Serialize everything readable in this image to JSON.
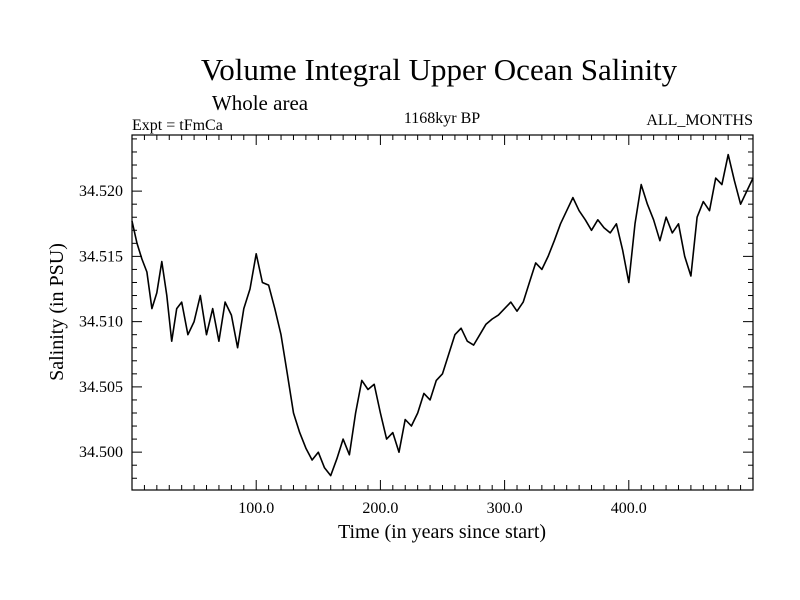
{
  "chart_data": {
    "type": "line",
    "title": "Volume Integral Upper Ocean Salinity",
    "subtitle": "Whole area",
    "annotations": {
      "left": "Expt = tFmCa",
      "center": "1168kyr BP",
      "right": "ALL_MONTHS"
    },
    "xlabel": "Time (in years since start)",
    "ylabel": "Salinity (in PSU)",
    "xlim": [
      0,
      500
    ],
    "ylim": [
      34.4971,
      34.5243
    ],
    "x_ticks": [
      {
        "value": 100,
        "label": "100.0"
      },
      {
        "value": 200,
        "label": "200.0"
      },
      {
        "value": 300,
        "label": "300.0"
      },
      {
        "value": 400,
        "label": "400.0"
      }
    ],
    "y_ticks": [
      {
        "value": 34.5,
        "label": "34.500"
      },
      {
        "value": 34.505,
        "label": "34.505"
      },
      {
        "value": 34.51,
        "label": "34.510"
      },
      {
        "value": 34.515,
        "label": "34.515"
      },
      {
        "value": 34.52,
        "label": "34.520"
      }
    ],
    "grid": false,
    "series": [
      {
        "name": "salinity",
        "x": [
          0,
          4,
          8,
          12,
          16,
          20,
          24,
          28,
          32,
          36,
          40,
          45,
          50,
          55,
          60,
          65,
          70,
          75,
          80,
          85,
          90,
          95,
          100,
          105,
          110,
          115,
          120,
          125,
          130,
          135,
          140,
          145,
          150,
          155,
          160,
          165,
          170,
          175,
          180,
          185,
          190,
          195,
          200,
          205,
          210,
          215,
          220,
          225,
          230,
          235,
          240,
          245,
          250,
          255,
          260,
          265,
          270,
          275,
          280,
          285,
          290,
          295,
          300,
          305,
          310,
          315,
          320,
          325,
          330,
          335,
          340,
          345,
          350,
          355,
          360,
          365,
          370,
          375,
          380,
          385,
          390,
          395,
          400,
          405,
          410,
          415,
          420,
          425,
          430,
          435,
          440,
          445,
          450,
          455,
          460,
          465,
          470,
          475,
          480,
          485,
          490,
          495,
          500
        ],
        "values": [
          34.5177,
          34.516,
          34.5148,
          34.5138,
          34.511,
          34.5122,
          34.5146,
          34.512,
          34.5085,
          34.511,
          34.5115,
          34.509,
          34.51,
          34.512,
          34.509,
          34.511,
          34.5085,
          34.5115,
          34.5105,
          34.508,
          34.511,
          34.5125,
          34.5152,
          34.513,
          34.5128,
          34.511,
          34.509,
          34.506,
          34.503,
          34.5015,
          34.5003,
          34.4994,
          34.5,
          34.4988,
          34.4982,
          34.4995,
          34.501,
          34.4998,
          34.503,
          34.5055,
          34.5048,
          34.5052,
          34.503,
          34.501,
          34.5015,
          34.5,
          34.5025,
          34.502,
          34.503,
          34.5045,
          34.504,
          34.5055,
          34.506,
          34.5075,
          34.509,
          34.5095,
          34.5085,
          34.5082,
          34.509,
          34.5098,
          34.5102,
          34.5105,
          34.511,
          34.5115,
          34.5108,
          34.5115,
          34.513,
          34.5145,
          34.514,
          34.515,
          34.5162,
          34.5175,
          34.5185,
          34.5195,
          34.5185,
          34.5178,
          34.517,
          34.5178,
          34.5172,
          34.5168,
          34.5175,
          34.5155,
          34.513,
          34.5175,
          34.5205,
          34.519,
          34.5178,
          34.5162,
          34.518,
          34.5168,
          34.5175,
          34.515,
          34.5135,
          34.518,
          34.5192,
          34.5185,
          34.521,
          34.5205,
          34.5228,
          34.5208,
          34.519,
          34.52,
          34.521
        ]
      }
    ]
  }
}
